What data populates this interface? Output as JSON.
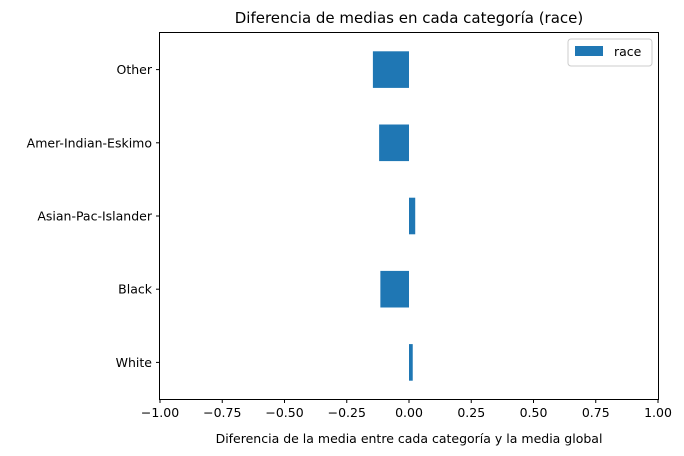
{
  "chart_data": {
    "type": "bar",
    "orientation": "horizontal",
    "title": "Diferencia de medias en cada categoría (race)",
    "xlabel": "Diferencia de la media entre cada categoría y la media global",
    "ylabel": "",
    "xlim": [
      -1.0,
      1.0
    ],
    "xticks": [
      -1.0,
      -0.75,
      -0.5,
      -0.25,
      0.0,
      0.25,
      0.5,
      0.75,
      1.0
    ],
    "xtick_labels": [
      "−1.00",
      "−0.75",
      "−0.50",
      "−0.25",
      "0.00",
      "0.25",
      "0.50",
      "0.75",
      "1.00"
    ],
    "categories": [
      "White",
      "Black",
      "Asian-Pac-Islander",
      "Amer-Indian-Eskimo",
      "Other"
    ],
    "series": [
      {
        "name": "race",
        "values": [
          0.015,
          -0.115,
          0.025,
          -0.12,
          -0.145
        ]
      }
    ],
    "legend": {
      "position": "top-right",
      "entries": [
        "race"
      ]
    },
    "grid": false,
    "colors": {
      "bar": "#1f77b4",
      "axis": "#000000",
      "legend_border": "#cccccc"
    }
  }
}
